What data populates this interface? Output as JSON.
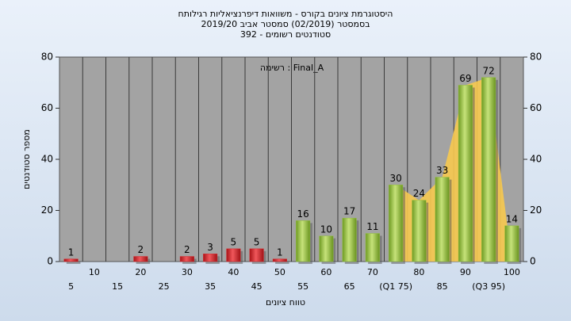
{
  "chart_data": {
    "type": "bar",
    "title": "היסטוגרמת ציונים בקורס - משוואות דיפרנציאליות רגילותח",
    "subtitle": "בסמסטר (02/2019) סמסטר אביב 2019/20",
    "subtitle2": "סטודנטים רשומים - 392",
    "annotation": "רשימה : Final_A",
    "xlabel": "טווח ציונים",
    "ylabel": "מספר סטודנטים",
    "categories": [
      "5",
      "10",
      "15",
      "20",
      "25",
      "30",
      "35",
      "40",
      "45",
      "50",
      "55",
      "60",
      "65",
      "70",
      "(Q1 75)",
      "80",
      "85",
      "90",
      "(Q3 95)",
      "100"
    ],
    "values": [
      1,
      0,
      0,
      2,
      0,
      2,
      3,
      5,
      5,
      1,
      16,
      10,
      17,
      11,
      30,
      24,
      33,
      69,
      72,
      14
    ],
    "colors": [
      "#d9262b",
      "#d9262b",
      "#d9262b",
      "#d9262b",
      "#d9262b",
      "#d9262b",
      "#d9262b",
      "#d9262b",
      "#d9262b",
      "#d9262b",
      "#92c03c",
      "#92c03c",
      "#92c03c",
      "#92c03c",
      "#92c03c",
      "#92c03c",
      "#92c03c",
      "#92c03c",
      "#92c03c",
      "#92c03c"
    ],
    "ylim": [
      0,
      80
    ],
    "yticks": [
      0,
      20,
      40,
      60,
      80
    ]
  }
}
